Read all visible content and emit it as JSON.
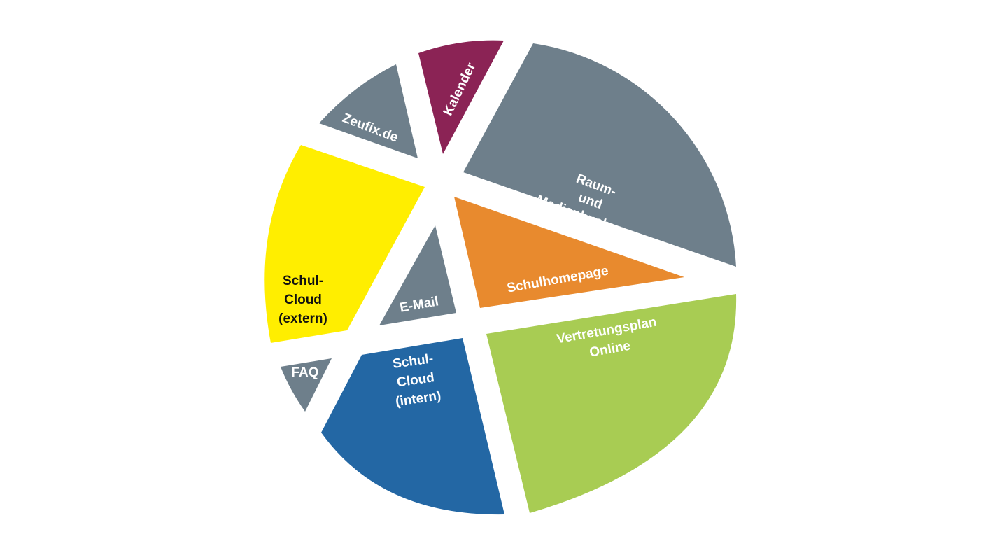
{
  "colors": {
    "gray": "#6e7f8b",
    "purple": "#8b2355",
    "yellow": "#ffee00",
    "orange": "#e88a2e",
    "green": "#a8cc53",
    "blue": "#2367a4",
    "white_text": "#ffffff",
    "dark_text": "#111111"
  },
  "segments": [
    {
      "id": "raum",
      "lines": [
        "Raum-",
        "und",
        "Medienbuchung"
      ],
      "color": "gray",
      "text_color": "white_text"
    },
    {
      "id": "kalender",
      "lines": [
        "Kalender"
      ],
      "color": "purple",
      "text_color": "white_text"
    },
    {
      "id": "zeufix",
      "lines": [
        "Zeufix.de"
      ],
      "color": "gray",
      "text_color": "white_text"
    },
    {
      "id": "schulcloud-extern",
      "lines": [
        "Schul-",
        "Cloud",
        "(extern)"
      ],
      "color": "yellow",
      "text_color": "dark_text"
    },
    {
      "id": "faq",
      "lines": [
        "FAQ"
      ],
      "color": "gray",
      "text_color": "white_text"
    },
    {
      "id": "email",
      "lines": [
        "E-Mail"
      ],
      "color": "gray",
      "text_color": "white_text"
    },
    {
      "id": "schulhomepage",
      "lines": [
        "Schulhomepage"
      ],
      "color": "orange",
      "text_color": "white_text"
    },
    {
      "id": "vertretungsplan",
      "lines": [
        "Vertretungsplan",
        "Online"
      ],
      "color": "green",
      "text_color": "white_text"
    },
    {
      "id": "schulcloud-intern",
      "lines": [
        "Schul-",
        "Cloud",
        "(intern)"
      ],
      "color": "blue",
      "text_color": "white_text"
    }
  ]
}
